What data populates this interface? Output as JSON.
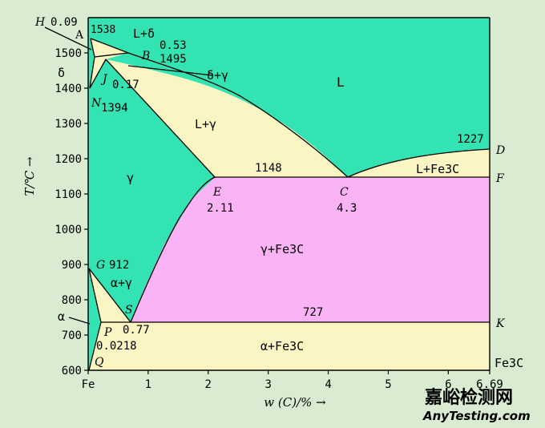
{
  "colors": {
    "background": "#d9ecd2",
    "liquid": "#33e3b3",
    "austenite": "#33e3b3",
    "two_phase": "#fbf5c3",
    "gamma_cementite": "#fab4f5",
    "lines": "#000000",
    "watermark": "#c7c7c7"
  },
  "axes": {
    "x_title": "w (C)/% →",
    "y_title": "T/℃ →",
    "x_min": 0,
    "x_max": 6.69,
    "y_min": 600,
    "y_max": 1600,
    "x_ticks": [
      {
        "value": 0,
        "label": "Fe"
      },
      {
        "value": 1,
        "label": "1"
      },
      {
        "value": 2,
        "label": "2"
      },
      {
        "value": 3,
        "label": "3"
      },
      {
        "value": 4,
        "label": "4"
      },
      {
        "value": 5,
        "label": "5"
      },
      {
        "value": 6,
        "label": "6"
      },
      {
        "value": 6.69,
        "label": "6.69"
      }
    ],
    "y_ticks": [
      {
        "value": 600,
        "label": "600"
      },
      {
        "value": 700,
        "label": "700"
      },
      {
        "value": 800,
        "label": "800"
      },
      {
        "value": 900,
        "label": "900"
      },
      {
        "value": 1000,
        "label": "1000"
      },
      {
        "value": 1100,
        "label": "1100"
      },
      {
        "value": 1200,
        "label": "1200"
      },
      {
        "value": 1300,
        "label": "1300"
      },
      {
        "value": 1400,
        "label": "1400"
      },
      {
        "value": 1500,
        "label": "1500"
      }
    ]
  },
  "points": {
    "A": {
      "label": "A",
      "value": "1538"
    },
    "H": {
      "label": "H",
      "value": "0.09"
    },
    "B": {
      "label": "B",
      "value": "0.53"
    },
    "B_temp": "1495",
    "J": {
      "label": "J",
      "value": "0.17"
    },
    "N": {
      "label": "N",
      "value": "1394"
    },
    "E": {
      "label": "E",
      "value": "2.11"
    },
    "C": {
      "label": "C",
      "value": "4.3"
    },
    "D": {
      "label": "D"
    },
    "F": {
      "label": "F"
    },
    "G": {
      "label": "G",
      "value": "912"
    },
    "S": {
      "label": "S",
      "value": "0.77"
    },
    "P": {
      "label": "P",
      "value": "0.0218"
    },
    "Q": {
      "label": "Q"
    },
    "K": {
      "label": "K"
    }
  },
  "temperatures": {
    "eutectic": "1148",
    "eutectoid": "727",
    "D_temp": "1227"
  },
  "regions": {
    "liquid": "L",
    "l_delta": "L+δ",
    "delta_gamma": "δ+γ",
    "delta": "δ",
    "l_gamma": "L+γ",
    "gamma": "γ",
    "l_fe3c": "L+Fe3C",
    "gamma_fe3c": "γ+Fe3C",
    "alpha_gamma": "α+γ",
    "alpha": "α",
    "alpha_fe3c": "α+Fe3C",
    "fe3c": "Fe3C"
  },
  "watermark": {
    "title": "嘉峪检测网",
    "url": "AnyTesting.com"
  }
}
